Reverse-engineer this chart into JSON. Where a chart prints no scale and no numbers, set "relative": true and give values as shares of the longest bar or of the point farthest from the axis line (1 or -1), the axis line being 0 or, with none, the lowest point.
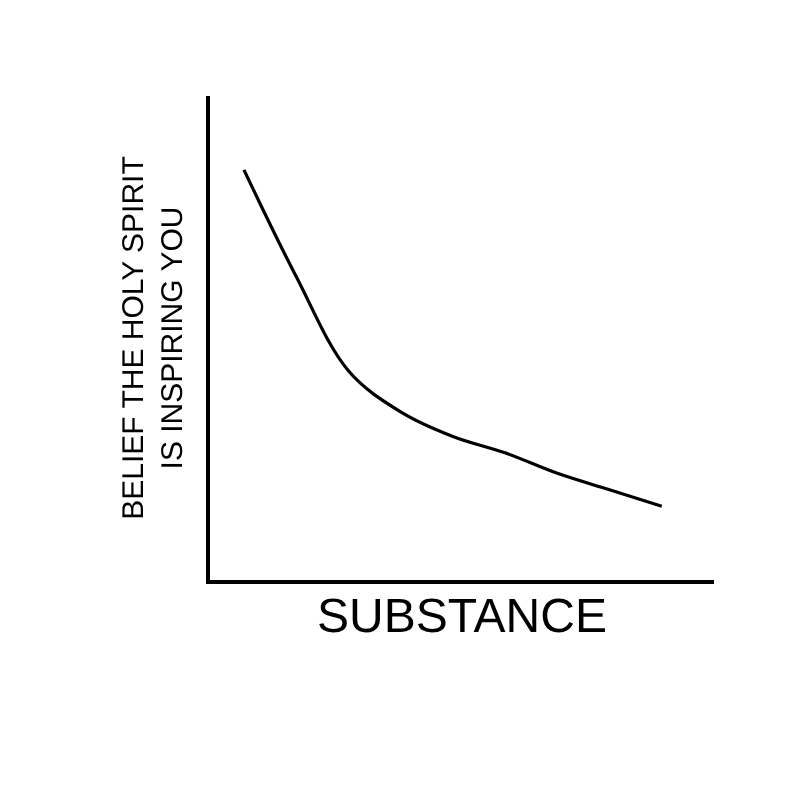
{
  "chart_data": {
    "type": "line",
    "relative": true,
    "xlabel": "SUBSTANCE",
    "ylabel": "BELIEF THE HOLY SPIRIT\nIS INSPIRING YOU",
    "categories": [
      null,
      null,
      null,
      null,
      null,
      null,
      null,
      null,
      null
    ],
    "series": [
      {
        "color": "#000000",
        "values": [
          1.0,
          0.74,
          0.51,
          0.41,
          0.35,
          0.31,
          0.26,
          0.22,
          0.18
        ]
      }
    ],
    "grid": false,
    "legend": false,
    "tick_labels": false,
    "marker": "none",
    "line_style": "solid"
  }
}
